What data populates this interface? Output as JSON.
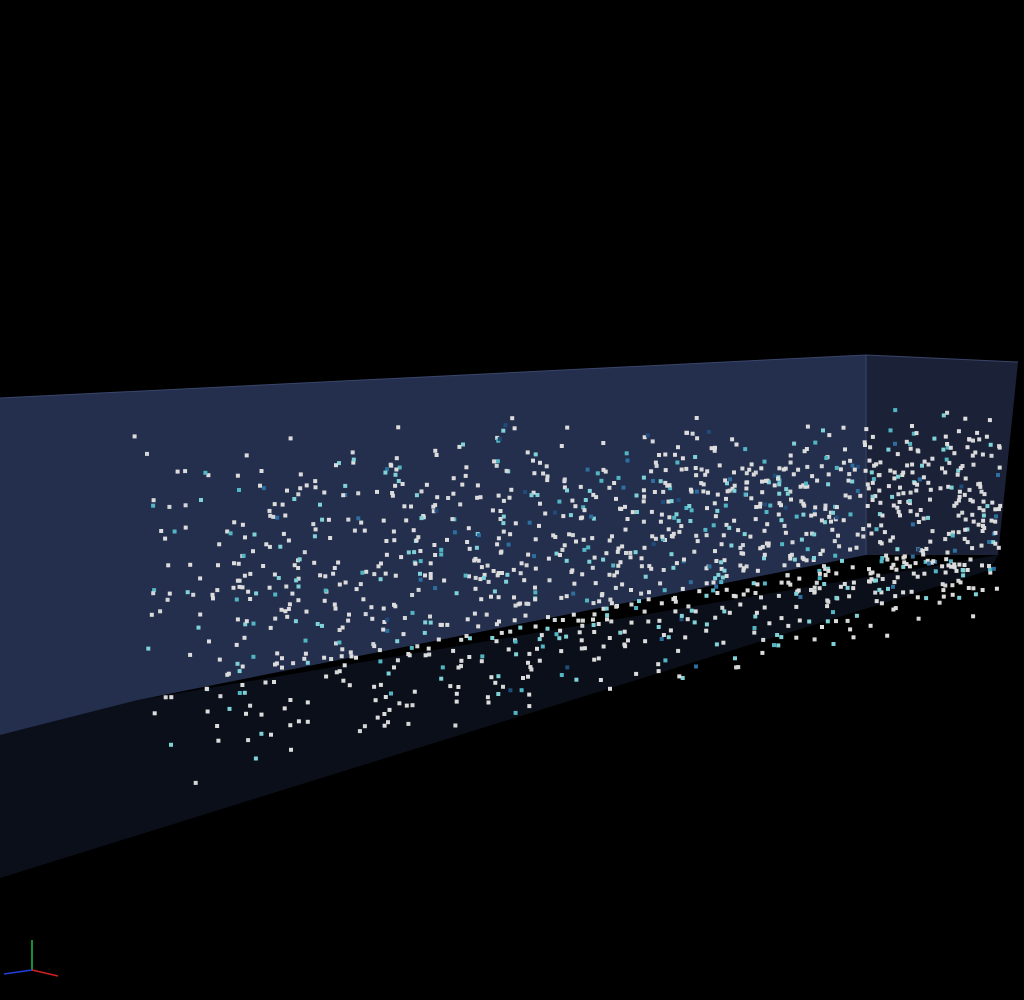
{
  "viewer": {
    "background": "#000000",
    "box": {
      "back_wall_color": "#242e4d",
      "end_wall_color": "#1b2238",
      "floor_color": "#0b0f19",
      "edge_color": "#39456b"
    },
    "particles": {
      "colors": [
        "#dcdcdc",
        "#d3d6d6",
        "#7fd3d8",
        "#52b6c4",
        "#2d6f9e",
        "#1f4c7a"
      ],
      "count": 1400
    },
    "axes": {
      "x_color": "#d42020",
      "y_color": "#20c040",
      "z_color": "#2040e0"
    }
  }
}
